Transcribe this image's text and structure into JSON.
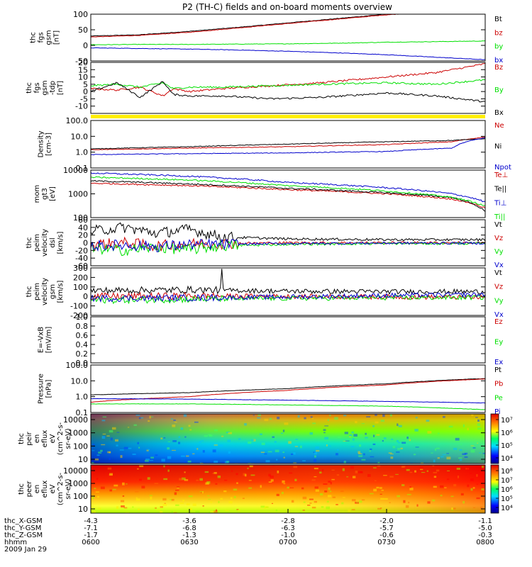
{
  "title": "P2 (TH-C) fields and on-board moments overview",
  "colors": {
    "black": "#000000",
    "red": "#cc0000",
    "green": "#00e000",
    "blue": "#0000cc",
    "yellow": "#ffee00"
  },
  "chart_data": [
    {
      "type": "line",
      "panel": "fgs_gsm",
      "ylabel": [
        "thc",
        "fgs",
        "gsm",
        "[nT]"
      ],
      "ylim": [
        -50,
        100
      ],
      "yticks": [
        "100",
        "50",
        "0",
        "-50"
      ],
      "legend": [
        {
          "label": "Bt",
          "color": "#000000"
        },
        {
          "label": "bz",
          "color": "#cc0000"
        },
        {
          "label": "by",
          "color": "#00e000"
        },
        {
          "label": "bx",
          "color": "#0000cc"
        }
      ],
      "series": [
        {
          "name": "Bt",
          "color": "#000000",
          "x": [
            0,
            15,
            30,
            45,
            60,
            75,
            90,
            105,
            120
          ],
          "values": [
            30,
            34,
            45,
            58,
            72,
            86,
            100,
            110,
            118
          ]
        },
        {
          "name": "bz",
          "color": "#cc0000",
          "x": [
            0,
            15,
            30,
            45,
            60,
            75,
            90,
            105,
            120
          ],
          "values": [
            27,
            32,
            42,
            56,
            70,
            84,
            98,
            108,
            116
          ]
        },
        {
          "name": "by",
          "color": "#00e000",
          "x": [
            0,
            15,
            30,
            45,
            60,
            75,
            90,
            105,
            120
          ],
          "values": [
            2,
            3,
            3,
            4,
            5,
            7,
            10,
            12,
            14
          ]
        },
        {
          "name": "bx",
          "color": "#0000cc",
          "x": [
            0,
            15,
            30,
            45,
            60,
            75,
            90,
            105,
            120
          ],
          "values": [
            -8,
            -10,
            -12,
            -15,
            -19,
            -24,
            -30,
            -38,
            -46
          ]
        }
      ]
    },
    {
      "type": "line",
      "panel": "fgs_gsm_zoom",
      "ylabel": [
        "thc",
        "fgs",
        "gsm",
        "-tdp",
        "[nT]"
      ],
      "ylim": [
        -15,
        20
      ],
      "yticks": [
        "20",
        "15",
        "10",
        "5",
        "0",
        "-5",
        "-10"
      ],
      "legend": [
        {
          "label": "Bz",
          "color": "#cc0000"
        },
        {
          "label": "By",
          "color": "#00e000"
        },
        {
          "label": "Bx",
          "color": "#000000"
        }
      ],
      "series": [
        {
          "name": "Bz",
          "color": "#cc0000",
          "x": [
            0,
            8,
            15,
            22,
            25,
            30,
            40,
            55,
            70,
            90,
            105,
            120
          ],
          "values": [
            2,
            1,
            3,
            -3,
            2,
            0,
            2,
            4,
            6,
            10,
            13,
            19
          ]
        },
        {
          "name": "By",
          "color": "#00e000",
          "x": [
            0,
            8,
            15,
            22,
            25,
            30,
            40,
            55,
            70,
            90,
            105,
            120
          ],
          "values": [
            4,
            5,
            3,
            6,
            2,
            3,
            3,
            4,
            5,
            6,
            5,
            8
          ]
        },
        {
          "name": "Bx",
          "color": "#000000",
          "x": [
            0,
            8,
            15,
            22,
            25,
            30,
            40,
            55,
            70,
            90,
            105,
            120
          ],
          "values": [
            0,
            6,
            -4,
            7,
            -2,
            -3,
            -3,
            -5,
            -4,
            -1,
            -3,
            -7
          ]
        }
      ]
    },
    {
      "type": "line",
      "panel": "density",
      "scale": "log",
      "ylabel": [
        "Density",
        "[cm-3]"
      ],
      "ylim": [
        0.1,
        100
      ],
      "yticks": [
        "100.0",
        "10.0",
        "1.0",
        "0.1"
      ],
      "legend": [
        {
          "label": "Ne",
          "color": "#cc0000"
        },
        {
          "label": "Ni",
          "color": "#000000"
        },
        {
          "label": "Npot",
          "color": "#0000cc"
        }
      ],
      "series": [
        {
          "name": "Ne",
          "color": "#cc0000",
          "x": [
            0,
            30,
            60,
            90,
            110,
            120
          ],
          "values": [
            1.4,
            1.8,
            2.2,
            3.0,
            4.5,
            9
          ]
        },
        {
          "name": "Ni",
          "color": "#000000",
          "x": [
            0,
            30,
            60,
            90,
            110,
            120
          ],
          "values": [
            1.6,
            2.2,
            3.2,
            4.5,
            5.5,
            7
          ]
        },
        {
          "name": "Npot",
          "color": "#0000cc",
          "x": [
            0,
            30,
            60,
            90,
            110,
            120
          ],
          "values": [
            0.7,
            0.8,
            0.9,
            1.1,
            1.8,
            8
          ]
        }
      ]
    },
    {
      "type": "line",
      "panel": "temperature",
      "scale": "log",
      "ylabel": [
        "mom",
        "gt3",
        "[eV]"
      ],
      "ylim": [
        100,
        10000
      ],
      "yticks": [
        "10000",
        "1000",
        "100"
      ],
      "legend": [
        {
          "label": "Te⊥",
          "color": "#cc0000"
        },
        {
          "label": "Te||",
          "color": "#000000"
        },
        {
          "label": "Ti⊥",
          "color": "#0000cc"
        },
        {
          "label": "Ti||",
          "color": "#00e000"
        }
      ],
      "series": [
        {
          "name": "Te⊥",
          "color": "#cc0000",
          "x": [
            0,
            30,
            60,
            90,
            110,
            120
          ],
          "values": [
            2800,
            2200,
            1500,
            1000,
            600,
            250
          ]
        },
        {
          "name": "Te||",
          "color": "#000000",
          "x": [
            0,
            30,
            60,
            90,
            110,
            120
          ],
          "values": [
            3500,
            2600,
            1700,
            1100,
            700,
            180
          ]
        },
        {
          "name": "Ti⊥",
          "color": "#0000cc",
          "x": [
            0,
            30,
            60,
            90,
            110,
            120
          ],
          "values": [
            7500,
            5500,
            3000,
            1800,
            1000,
            450
          ]
        },
        {
          "name": "Ti||",
          "color": "#00e000",
          "x": [
            0,
            30,
            60,
            90,
            110,
            120
          ],
          "values": [
            5000,
            3800,
            2200,
            1300,
            700,
            300
          ]
        }
      ]
    },
    {
      "type": "line",
      "panel": "peim_dsl",
      "ylabel": [
        "thc",
        "peim",
        "velocity",
        "dsl",
        "[km/s]"
      ],
      "ylim": [
        -60,
        60
      ],
      "yticks": [
        "60",
        "40",
        "20",
        "0",
        "-20",
        "-40",
        "-60"
      ],
      "legend": [
        {
          "label": "Vt",
          "color": "#000000"
        },
        {
          "label": "Vz",
          "color": "#cc0000"
        },
        {
          "label": "Vy",
          "color": "#00e000"
        },
        {
          "label": "Vx",
          "color": "#0000cc"
        }
      ],
      "series": [
        {
          "name": "Vt",
          "color": "#000000",
          "x": [
            0,
            10,
            20,
            30,
            40,
            60,
            90,
            120
          ],
          "values": [
            30,
            40,
            25,
            35,
            15,
            10,
            8,
            8
          ]
        },
        {
          "name": "Vz",
          "color": "#cc0000",
          "x": [
            0,
            10,
            20,
            30,
            40,
            60,
            90,
            120
          ],
          "values": [
            -5,
            0,
            -8,
            -3,
            -2,
            0,
            0,
            0
          ]
        },
        {
          "name": "Vy",
          "color": "#00e000",
          "x": [
            0,
            10,
            20,
            30,
            40,
            60,
            90,
            120
          ],
          "values": [
            -15,
            -20,
            -12,
            -18,
            -8,
            -4,
            -2,
            -2
          ]
        },
        {
          "name": "Vx",
          "color": "#0000cc",
          "x": [
            0,
            10,
            20,
            30,
            40,
            60,
            90,
            120
          ],
          "values": [
            -8,
            -6,
            -10,
            -5,
            -4,
            -2,
            -1,
            -1
          ]
        }
      ]
    },
    {
      "type": "line",
      "panel": "peim_gsm",
      "ylabel": [
        "thc",
        "peim",
        "velocity",
        "gsm",
        "[km/s]"
      ],
      "ylim": [
        -200,
        300
      ],
      "yticks": [
        "300",
        "200",
        "100",
        "0",
        "-100",
        "-200"
      ],
      "legend": [
        {
          "label": "Vt",
          "color": "#000000"
        },
        {
          "label": "Vz",
          "color": "#cc0000"
        },
        {
          "label": "Vy",
          "color": "#00e000"
        },
        {
          "label": "Vx",
          "color": "#0000cc"
        }
      ],
      "series": [
        {
          "name": "Vt",
          "color": "#000000",
          "x": [
            0,
            30,
            60,
            90,
            120
          ],
          "values": [
            60,
            70,
            55,
            50,
            50
          ]
        },
        {
          "name": "Vz",
          "color": "#cc0000",
          "x": [
            0,
            30,
            60,
            90,
            120
          ],
          "values": [
            0,
            5,
            0,
            -5,
            -10
          ]
        },
        {
          "name": "Vy",
          "color": "#00e000",
          "x": [
            0,
            30,
            60,
            90,
            120
          ],
          "values": [
            -40,
            -30,
            -20,
            -15,
            -10
          ]
        },
        {
          "name": "Vx",
          "color": "#0000cc",
          "x": [
            0,
            30,
            60,
            90,
            120
          ],
          "values": [
            -20,
            -15,
            -5,
            10,
            20
          ]
        }
      ]
    },
    {
      "type": "line",
      "panel": "efield",
      "ylabel": [
        "E=-VxB",
        "[mV/m]"
      ],
      "ylim": [
        0,
        1
      ],
      "yticks": [
        "1.0",
        "0.8",
        "0.6",
        "0.4",
        "0.2",
        "0.0"
      ],
      "legend": [
        {
          "label": "Ez",
          "color": "#cc0000"
        },
        {
          "label": "Ey",
          "color": "#00e000"
        },
        {
          "label": "Ex",
          "color": "#0000cc"
        }
      ],
      "series": []
    },
    {
      "type": "line",
      "panel": "pressure",
      "scale": "log",
      "ylabel": [
        "Pressure",
        "[nPa]"
      ],
      "ylim": [
        0.1,
        100
      ],
      "yticks": [
        "100.0",
        "10.0",
        "1.0",
        "0.1"
      ],
      "legend": [
        {
          "label": "Pt",
          "color": "#000000"
        },
        {
          "label": "Pb",
          "color": "#cc0000"
        },
        {
          "label": "Pe",
          "color": "#00e000"
        },
        {
          "label": "Pi",
          "color": "#0000cc"
        }
      ],
      "series": [
        {
          "name": "Pt",
          "color": "#000000",
          "x": [
            0,
            30,
            60,
            90,
            120
          ],
          "values": [
            1.3,
            1.8,
            3.2,
            6.5,
            14
          ]
        },
        {
          "name": "Pb",
          "color": "#cc0000",
          "x": [
            0,
            30,
            60,
            90,
            120
          ],
          "values": [
            0.45,
            1.0,
            2.5,
            5.5,
            13
          ]
        },
        {
          "name": "Pe",
          "color": "#00e000",
          "x": [
            0,
            30,
            60,
            90,
            120
          ],
          "values": [
            0.35,
            0.35,
            0.3,
            0.25,
            0.15
          ]
        },
        {
          "name": "Pi",
          "color": "#0000cc",
          "x": [
            0,
            30,
            60,
            90,
            120
          ],
          "values": [
            0.75,
            0.7,
            0.6,
            0.5,
            0.4
          ]
        }
      ]
    },
    {
      "type": "heatmap",
      "panel": "peir_spectrogram",
      "ylabel": [
        "thc",
        "peir",
        "en",
        "eflux",
        "eV",
        "(cm^2-s-",
        "sr-eV)"
      ],
      "yticks": [
        "10000",
        "1000",
        "100",
        "10"
      ],
      "colorbar_ticks": [
        "10⁷",
        "10⁶",
        "10⁵",
        "10⁴"
      ],
      "ylim": [
        7,
        20000
      ],
      "scale": "log"
    },
    {
      "type": "heatmap",
      "panel": "peer_spectrogram",
      "ylabel": [
        "thc",
        "peer",
        "en",
        "eflux",
        "eV",
        "(cm^2-s-",
        "sr-eV)"
      ],
      "yticks": [
        "10000",
        "1000",
        "100",
        "10"
      ],
      "colorbar_ticks": [
        "10⁸",
        "10⁷",
        "10⁶",
        "10⁵",
        "10⁴"
      ],
      "ylim": [
        7,
        20000
      ],
      "scale": "log"
    }
  ],
  "x_axis": {
    "rows": [
      {
        "label": "thc_X-GSM",
        "values": [
          "-4.3",
          "-3.6",
          "-2.8",
          "-2.0",
          "-1.1"
        ]
      },
      {
        "label": "thc_Y-GSM",
        "values": [
          "-7.1",
          "-6.8",
          "-6.3",
          "-5.7",
          "-5.0"
        ]
      },
      {
        "label": "thc_Z-GSM",
        "values": [
          "-1.7",
          "-1.3",
          "-1.0",
          "-0.6",
          "-0.3"
        ]
      },
      {
        "label": "hhmm",
        "values": [
          "0600",
          "0630",
          "0700",
          "0730",
          "0800"
        ]
      }
    ],
    "date": "2009 Jan 29"
  }
}
